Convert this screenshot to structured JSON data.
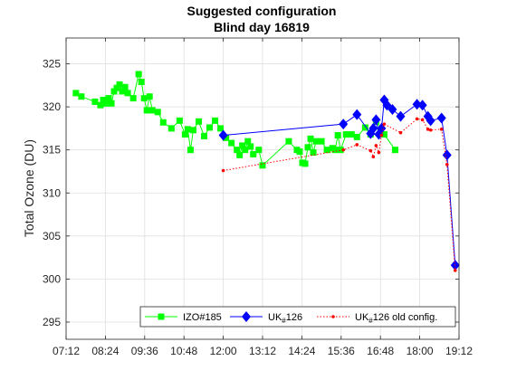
{
  "chart_data": {
    "type": "line",
    "title": "Suggested configuration",
    "subtitle": "Blind day 16819",
    "xlabel": "",
    "ylabel": "Total Ozone (DU)",
    "xlim": [
      "07:12",
      "19:12"
    ],
    "ylim": [
      293,
      328
    ],
    "x_ticks": [
      "07:12",
      "08:24",
      "09:36",
      "10:48",
      "12:00",
      "13:12",
      "14:24",
      "15:36",
      "16:48",
      "18:00",
      "19:12"
    ],
    "y_ticks": [
      295,
      300,
      305,
      310,
      315,
      320,
      325
    ],
    "grid": true,
    "legend_position": "bottom-right",
    "series": [
      {
        "name": "IZO#185",
        "color": "#00ff00",
        "marker": "square",
        "line": "solid",
        "points": [
          [
            "07:30",
            321.6
          ],
          [
            "07:40",
            321.2
          ],
          [
            "08:05",
            320.6
          ],
          [
            "08:15",
            320.2
          ],
          [
            "08:20",
            320.8
          ],
          [
            "08:25",
            320.4
          ],
          [
            "08:30",
            321.0
          ],
          [
            "08:35",
            320.4
          ],
          [
            "08:40",
            321.8
          ],
          [
            "08:45",
            322.2
          ],
          [
            "08:50",
            322.6
          ],
          [
            "08:55",
            321.8
          ],
          [
            "09:00",
            322.3
          ],
          [
            "09:05",
            321.6
          ],
          [
            "09:15",
            321.0
          ],
          [
            "09:25",
            323.8
          ],
          [
            "09:30",
            322.9
          ],
          [
            "09:35",
            321.0
          ],
          [
            "09:40",
            319.6
          ],
          [
            "09:45",
            321.2
          ],
          [
            "09:50",
            319.6
          ],
          [
            "10:00",
            319.4
          ],
          [
            "10:10",
            318.2
          ],
          [
            "10:25",
            317.5
          ],
          [
            "10:40",
            318.4
          ],
          [
            "10:50",
            316.8
          ],
          [
            "10:55",
            317.4
          ],
          [
            "11:00",
            315.0
          ],
          [
            "11:05",
            317.3
          ],
          [
            "11:15",
            318.3
          ],
          [
            "11:25",
            316.6
          ],
          [
            "11:35",
            317.6
          ],
          [
            "11:45",
            318.4
          ],
          [
            "11:55",
            317.5
          ],
          [
            "12:05",
            316.4
          ],
          [
            "12:15",
            315.8
          ],
          [
            "12:25",
            315.0
          ],
          [
            "12:30",
            314.4
          ],
          [
            "12:35",
            315.5
          ],
          [
            "12:40",
            315.0
          ],
          [
            "12:45",
            316.0
          ],
          [
            "12:50",
            315.4
          ],
          [
            "12:55",
            314.5
          ],
          [
            "13:05",
            315.0
          ],
          [
            "13:12",
            313.2
          ],
          [
            "14:00",
            316.0
          ],
          [
            "14:15",
            315.0
          ],
          [
            "14:20",
            314.8
          ],
          [
            "14:25",
            313.5
          ],
          [
            "14:30",
            313.4
          ],
          [
            "14:35",
            315.3
          ],
          [
            "14:40",
            316.3
          ],
          [
            "14:45",
            314.7
          ],
          [
            "14:50",
            316.0
          ],
          [
            "15:00",
            316.0
          ],
          [
            "15:10",
            315.0
          ],
          [
            "15:20",
            315.2
          ],
          [
            "15:25",
            315.0
          ],
          [
            "15:30",
            316.7
          ],
          [
            "15:35",
            315.0
          ],
          [
            "15:45",
            316.8
          ],
          [
            "15:55",
            316.8
          ],
          [
            "16:05",
            316.5
          ],
          [
            "16:20",
            317.6
          ],
          [
            "16:30",
            316.8
          ],
          [
            "16:40",
            318.3
          ],
          [
            "16:55",
            316.8
          ],
          [
            "17:15",
            315.0
          ]
        ]
      },
      {
        "name": "UK#126",
        "color": "#0000ff",
        "marker": "diamond",
        "line": "solid",
        "points": [
          [
            "12:00",
            316.7
          ],
          [
            "15:40",
            318.0
          ],
          [
            "16:05",
            319.1
          ],
          [
            "16:30",
            316.9
          ],
          [
            "16:35",
            317.5
          ],
          [
            "16:40",
            318.5
          ],
          [
            "16:45",
            316.8
          ],
          [
            "16:50",
            317.5
          ],
          [
            "16:55",
            320.8
          ],
          [
            "17:00",
            320.2
          ],
          [
            "17:10",
            319.7
          ],
          [
            "17:25",
            318.9
          ],
          [
            "17:55",
            320.3
          ],
          [
            "18:05",
            320.2
          ],
          [
            "18:15",
            318.9
          ],
          [
            "18:20",
            318.4
          ],
          [
            "18:40",
            318.7
          ],
          [
            "18:50",
            314.4
          ],
          [
            "19:05",
            301.6
          ]
        ]
      },
      {
        "name": "UK#126 old config.",
        "color": "#ff0000",
        "marker": "dot",
        "line": "dotted",
        "points": [
          [
            "12:00",
            312.6
          ],
          [
            "15:40",
            315.0
          ],
          [
            "16:05",
            315.6
          ],
          [
            "16:30",
            314.9
          ],
          [
            "16:35",
            314.2
          ],
          [
            "16:40",
            315.5
          ],
          [
            "16:45",
            314.7
          ],
          [
            "16:50",
            316.7
          ],
          [
            "16:55",
            318.0
          ],
          [
            "17:25",
            317.0
          ],
          [
            "17:55",
            318.6
          ],
          [
            "18:05",
            318.5
          ],
          [
            "18:15",
            317.4
          ],
          [
            "18:20",
            317.3
          ],
          [
            "18:40",
            317.4
          ],
          [
            "18:50",
            313.3
          ],
          [
            "19:05",
            301.0
          ]
        ]
      }
    ]
  },
  "legend": {
    "item1": "IZO#185",
    "item2_main": "UK",
    "item2_sub": "#",
    "item2_rest": "126",
    "item3_main": "UK",
    "item3_sub": "#",
    "item3_rest": "126 old config."
  }
}
